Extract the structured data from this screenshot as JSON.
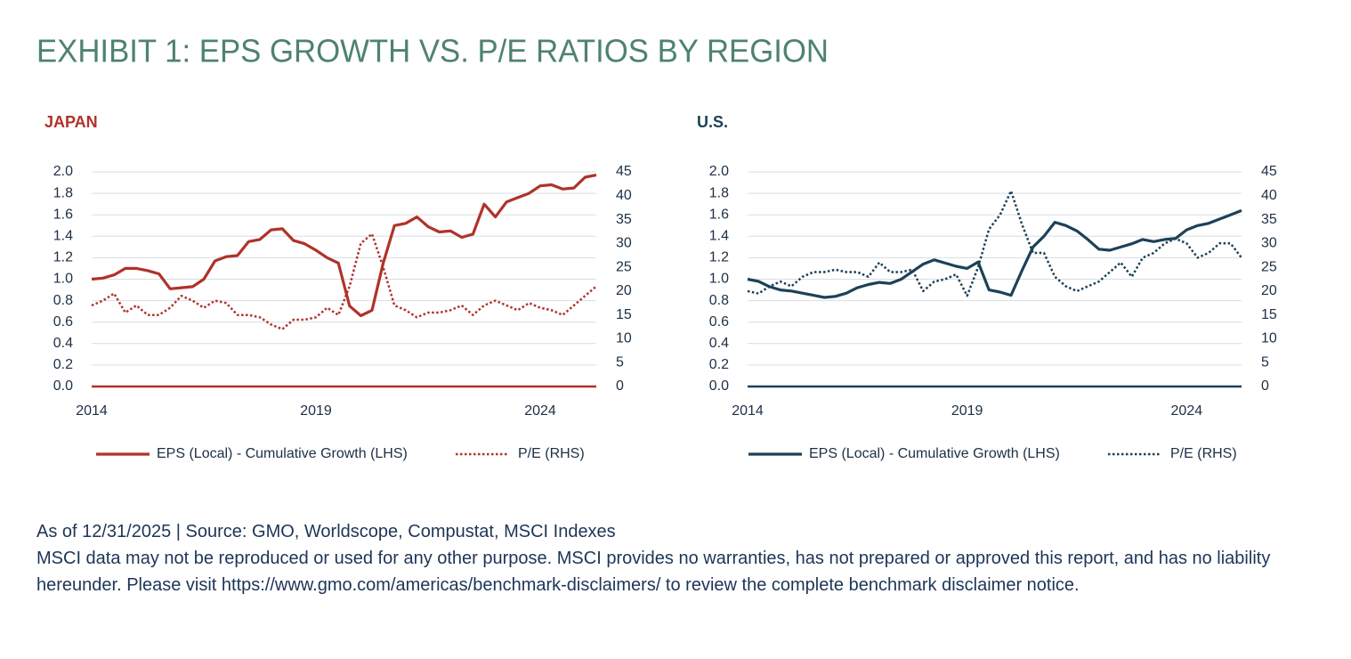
{
  "title": "EXHIBIT 1: EPS GROWTH VS. P/E RATIOS BY REGION",
  "chart_data": [
    {
      "type": "line",
      "title": "JAPAN",
      "x": [
        2014,
        2014.25,
        2014.5,
        2014.75,
        2015,
        2015.25,
        2015.5,
        2015.75,
        2016,
        2016.25,
        2016.5,
        2016.75,
        2017,
        2017.25,
        2017.5,
        2017.75,
        2018,
        2018.25,
        2018.5,
        2018.75,
        2019,
        2019.25,
        2019.5,
        2019.75,
        2020,
        2020.25,
        2020.5,
        2020.75,
        2021,
        2021.25,
        2021.5,
        2021.75,
        2022,
        2022.25,
        2022.5,
        2022.75,
        2023,
        2023.25,
        2023.5,
        2023.75,
        2024,
        2024.25,
        2024.5,
        2024.75,
        2025,
        2025.25
      ],
      "xlim": [
        2014,
        2025.25
      ],
      "xticks": [
        2014,
        2019,
        2024
      ],
      "ylim": [
        0,
        2
      ],
      "yticks": [
        {
          "value": 0,
          "label": "0.0"
        },
        0.2,
        0.4,
        0.6,
        0.8,
        {
          "value": 1,
          "label": "1.0"
        },
        1.2,
        1.4,
        1.6,
        1.8,
        {
          "value": 2,
          "label": "2.0"
        }
      ],
      "y2lim": [
        0,
        45
      ],
      "y2ticks": [
        0,
        5,
        10,
        15,
        20,
        25,
        30,
        35,
        40,
        45
      ],
      "grid": true,
      "legend": "bottom",
      "series": [
        {
          "name": "EPS (Local) - Cumulative Growth (LHS)",
          "color": "#b0322a",
          "style": "solid",
          "values": [
            1.0,
            1.01,
            1.04,
            1.1,
            1.1,
            1.08,
            1.05,
            0.91,
            0.92,
            0.93,
            1.0,
            1.17,
            1.21,
            1.22,
            1.35,
            1.37,
            1.46,
            1.47,
            1.36,
            1.33,
            1.27,
            1.2,
            1.15,
            0.75,
            0.66,
            0.71,
            1.15,
            1.5,
            1.52,
            1.58,
            1.49,
            1.44,
            1.45,
            1.39,
            1.42,
            1.7,
            1.58,
            1.72,
            1.76,
            1.8,
            1.87,
            1.88,
            1.84,
            1.85,
            1.95,
            1.97
          ]
        },
        {
          "name": "P/E (RHS)",
          "color": "#b0322a",
          "style": "dotted",
          "axis": "y2",
          "values": [
            17,
            18,
            19.5,
            15.5,
            17,
            15,
            15,
            16.5,
            19,
            18,
            16.5,
            18,
            17.5,
            15,
            15,
            14.5,
            13,
            12,
            14,
            14,
            14.5,
            16.5,
            15,
            21,
            30,
            32,
            25,
            17,
            16,
            14.5,
            15.5,
            15.5,
            16,
            17,
            15,
            17,
            18,
            17,
            16,
            17.5,
            16.5,
            16,
            15,
            17,
            19,
            21
          ]
        }
      ]
    },
    {
      "type": "line",
      "title": "U.S.",
      "x": [
        2014,
        2014.25,
        2014.5,
        2014.75,
        2015,
        2015.25,
        2015.5,
        2015.75,
        2016,
        2016.25,
        2016.5,
        2016.75,
        2017,
        2017.25,
        2017.5,
        2017.75,
        2018,
        2018.25,
        2018.5,
        2018.75,
        2019,
        2019.25,
        2019.5,
        2019.75,
        2020,
        2020.25,
        2020.5,
        2020.75,
        2021,
        2021.25,
        2021.5,
        2021.75,
        2022,
        2022.25,
        2022.5,
        2022.75,
        2023,
        2023.25,
        2023.5,
        2023.75,
        2024,
        2024.25,
        2024.5,
        2024.75,
        2025,
        2025.25
      ],
      "xlim": [
        2014,
        2025.25
      ],
      "xticks": [
        2014,
        2019,
        2024
      ],
      "ylim": [
        0,
        2
      ],
      "yticks": [
        {
          "value": 0,
          "label": "0.0"
        },
        0.2,
        0.4,
        0.6,
        0.8,
        {
          "value": 1,
          "label": "1.0"
        },
        1.2,
        1.4,
        1.6,
        1.8,
        {
          "value": 2,
          "label": "2.0"
        }
      ],
      "y2lim": [
        0,
        45
      ],
      "y2ticks": [
        0,
        5,
        10,
        15,
        20,
        25,
        30,
        35,
        40,
        45
      ],
      "grid": true,
      "legend": "bottom",
      "series": [
        {
          "name": "EPS (Local) - Cumulative Growth (LHS)",
          "color": "#1d4157",
          "style": "solid",
          "values": [
            1.0,
            0.98,
            0.93,
            0.9,
            0.89,
            0.87,
            0.85,
            0.83,
            0.84,
            0.87,
            0.92,
            0.95,
            0.97,
            0.96,
            1.0,
            1.07,
            1.14,
            1.18,
            1.15,
            1.12,
            1.1,
            1.16,
            0.9,
            0.88,
            0.85,
            1.08,
            1.3,
            1.4,
            1.53,
            1.5,
            1.45,
            1.37,
            1.28,
            1.27,
            1.3,
            1.33,
            1.37,
            1.35,
            1.37,
            1.38,
            1.46,
            1.5,
            1.52,
            1.56,
            1.6,
            1.64
          ]
        },
        {
          "name": "P/E (RHS)",
          "color": "#1d4157",
          "style": "dotted",
          "axis": "y2",
          "values": [
            20,
            19.5,
            21,
            22,
            21,
            23,
            24,
            24,
            24.5,
            24,
            24,
            23,
            26,
            24,
            24,
            24.5,
            20,
            22,
            22.5,
            23.5,
            19,
            25,
            33,
            36,
            41,
            34,
            28,
            28,
            23,
            21,
            20,
            21,
            22,
            24,
            26,
            23,
            27,
            28,
            30,
            31,
            30,
            27,
            28,
            30,
            30,
            27
          ]
        }
      ]
    }
  ],
  "source": "As of 12/31/2025 | Source: GMO, Worldscope, Compustat, MSCI Indexes",
  "disclaimer": "MSCI data may not be reproduced or used for any other purpose. MSCI provides no warranties, has not prepared or approved this report, and has no liability hereunder. Please visit https://www.gmo.com/americas/benchmark-disclaimers/ to review the complete benchmark disclaimer notice."
}
